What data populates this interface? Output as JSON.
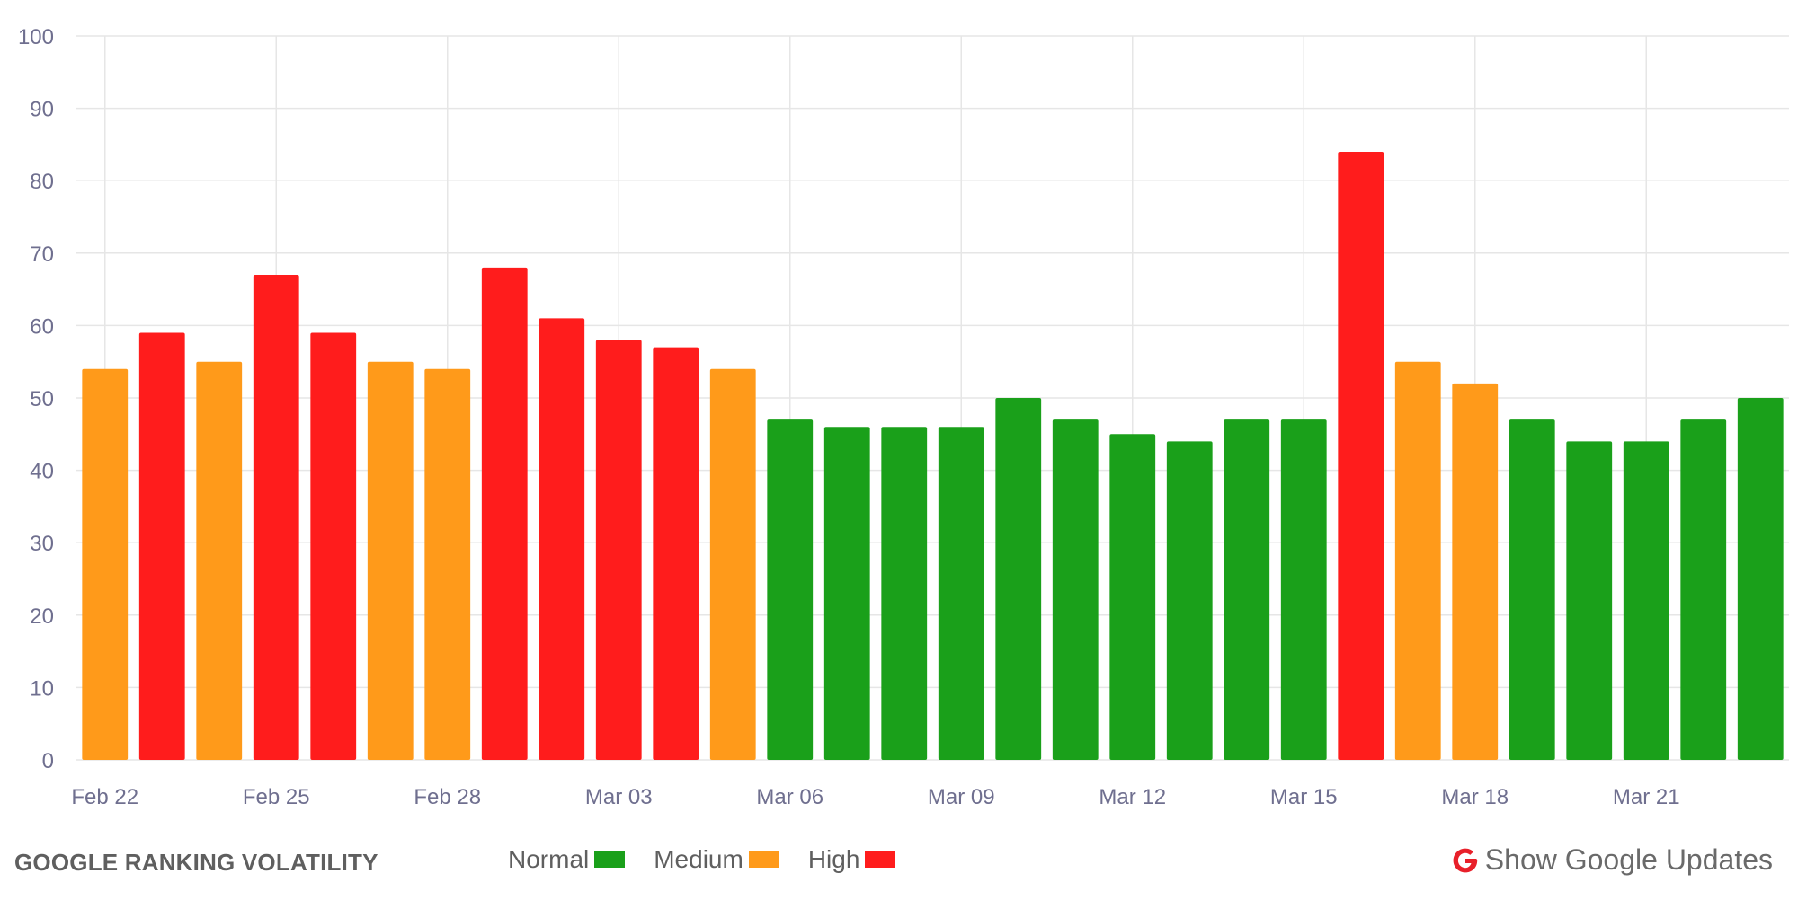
{
  "colors": {
    "Normal": "#1aa01a",
    "Medium": "#ff9a1a",
    "High": "#ff1c1c",
    "grid": "#e6e6e6",
    "tick": "#6f6f8f",
    "google_red": "#e8202a"
  },
  "footer": {
    "title": "GOOGLE RANKING VOLATILITY",
    "legend": [
      {
        "label": "Normal",
        "level": "Normal"
      },
      {
        "label": "Medium",
        "level": "Medium"
      },
      {
        "label": "High",
        "level": "High"
      }
    ],
    "updates_label": "Show Google Updates",
    "updates_icon": "google-g-icon"
  },
  "chart_data": {
    "type": "bar",
    "title": "GOOGLE RANKING VOLATILITY",
    "xlabel": "",
    "ylabel": "",
    "ylim": [
      0,
      100
    ],
    "yticks": [
      0,
      10,
      20,
      30,
      40,
      50,
      60,
      70,
      80,
      90,
      100
    ],
    "grid": true,
    "categories": [
      "Feb 22",
      "Feb 23",
      "Feb 24",
      "Feb 25",
      "Feb 26",
      "Feb 27",
      "Feb 28",
      "Mar 01",
      "Mar 02",
      "Mar 03",
      "Mar 04",
      "Mar 05",
      "Mar 06",
      "Mar 07",
      "Mar 08",
      "Mar 09",
      "Mar 10",
      "Mar 11",
      "Mar 12",
      "Mar 13",
      "Mar 14",
      "Mar 15",
      "Mar 16",
      "Mar 17",
      "Mar 18",
      "Mar 19",
      "Mar 20",
      "Mar 21",
      "Mar 22",
      "Mar 23"
    ],
    "values": [
      54,
      59,
      55,
      67,
      59,
      55,
      54,
      68,
      61,
      58,
      57,
      54,
      47,
      46,
      46,
      46,
      50,
      47,
      45,
      44,
      47,
      47,
      84,
      55,
      52,
      47,
      44,
      44,
      47,
      50
    ],
    "levels": [
      "Medium",
      "High",
      "Medium",
      "High",
      "High",
      "Medium",
      "Medium",
      "High",
      "High",
      "High",
      "High",
      "Medium",
      "Normal",
      "Normal",
      "Normal",
      "Normal",
      "Normal",
      "Normal",
      "Normal",
      "Normal",
      "Normal",
      "Normal",
      "High",
      "Medium",
      "Medium",
      "Normal",
      "Normal",
      "Normal",
      "Normal",
      "Normal"
    ],
    "xtick_labels": [
      "Feb 22",
      "Feb 25",
      "Feb 28",
      "Mar 03",
      "Mar 06",
      "Mar 09",
      "Mar 12",
      "Mar 15",
      "Mar 18",
      "Mar 21"
    ],
    "legend_position": "bottom"
  }
}
